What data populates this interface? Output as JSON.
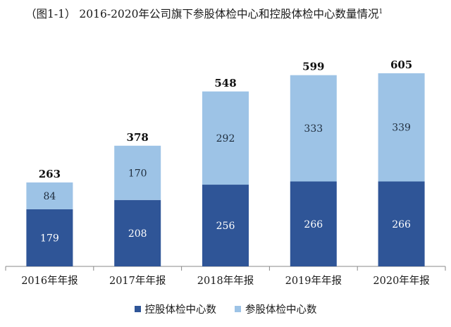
{
  "title": "（图1-1）  2016-2020年公司旗下参股体检中心和控股体检中心数量情况",
  "title_superscript": "1",
  "colors": {
    "controlled": "#2f5597",
    "participating": "#9dc3e6",
    "axis": "#888888"
  },
  "chart_data": {
    "type": "bar",
    "stacked": true,
    "categories": [
      "2016年年报",
      "2017年年报",
      "2018年年报",
      "2019年年报",
      "2020年年报"
    ],
    "series": [
      {
        "name": "控股体检中心数",
        "values": [
          179,
          208,
          256,
          266,
          266
        ]
      },
      {
        "name": "参股体检中心数",
        "values": [
          84,
          170,
          292,
          333,
          339
        ]
      }
    ],
    "totals": [
      263,
      378,
      548,
      599,
      605
    ],
    "ylim": [
      0,
      650
    ],
    "grid": false,
    "legend_position": "bottom"
  }
}
